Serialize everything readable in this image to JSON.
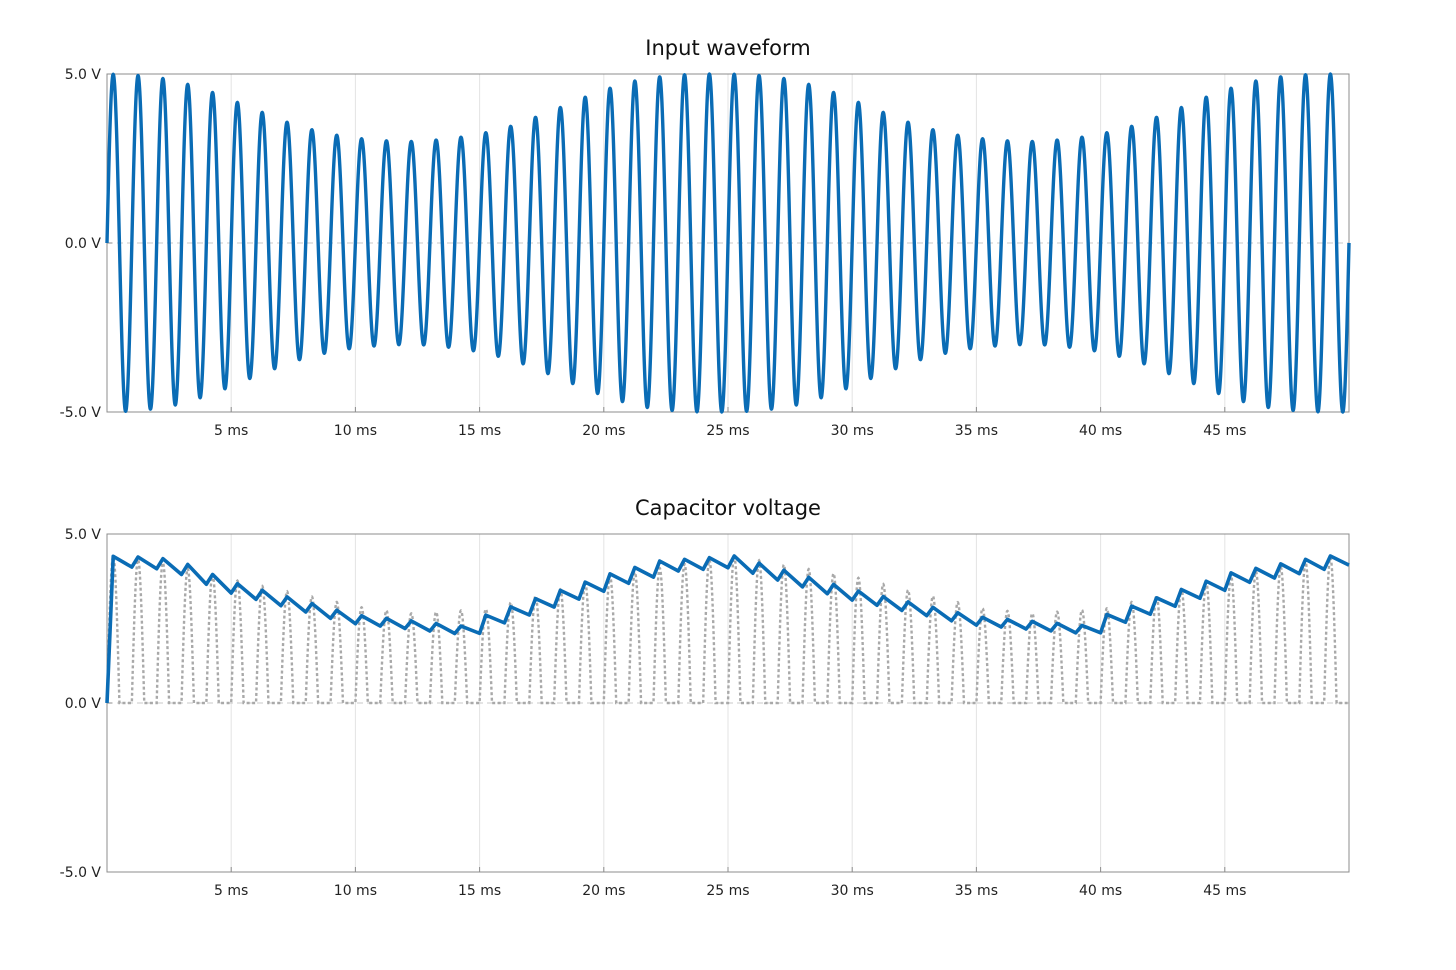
{
  "chart_data": [
    {
      "type": "line",
      "title": "Input waveform",
      "xlabel": "",
      "ylabel": "",
      "x_unit": "ms",
      "xlim": [
        0,
        50
      ],
      "ylim": [
        -5.0,
        5.0
      ],
      "x_ticks": [
        5,
        10,
        15,
        20,
        25,
        30,
        35,
        40,
        45
      ],
      "x_tick_labels": [
        "5 ms",
        "10 ms",
        "15 ms",
        "20 ms",
        "25 ms",
        "30 ms",
        "35 ms",
        "40 ms",
        "45 ms"
      ],
      "y_ticks": [
        5.0,
        0.0,
        -5.0
      ],
      "y_tick_labels": [
        "5.0 V",
        "0.0 V",
        "-5.0 V"
      ],
      "grid": true,
      "series": [
        {
          "color": "#0a6cb5",
          "signal": "amplitude-modulated sine",
          "carrier_frequency_hz": 1000,
          "envelope_min_v": 3.0,
          "envelope_max_v": 5.0,
          "envelope_period_ms": 25,
          "envelope_peaks_ms": [
            0,
            25,
            50
          ],
          "envelope_troughs_ms": [
            12.5,
            37.5
          ],
          "envelope_points": [
            {
              "x": 0.5,
              "y": 4.99
            },
            {
              "x": 1.5,
              "y": 4.94
            },
            {
              "x": 2.5,
              "y": 4.84
            },
            {
              "x": 3.5,
              "y": 4.64
            },
            {
              "x": 4.5,
              "y": 4.39
            },
            {
              "x": 5.5,
              "y": 4.08
            },
            {
              "x": 6.5,
              "y": 3.79
            },
            {
              "x": 7.5,
              "y": 3.5
            },
            {
              "x": 8.5,
              "y": 3.3
            },
            {
              "x": 9.5,
              "y": 3.15
            },
            {
              "x": 10.5,
              "y": 3.06
            },
            {
              "x": 11.5,
              "y": 3.01
            },
            {
              "x": 12.5,
              "y": 3.0
            },
            {
              "x": 13.5,
              "y": 3.06
            },
            {
              "x": 14.5,
              "y": 3.15
            },
            {
              "x": 15.5,
              "y": 3.3
            },
            {
              "x": 16.5,
              "y": 3.5
            },
            {
              "x": 17.5,
              "y": 3.79
            },
            {
              "x": 18.5,
              "y": 4.08
            },
            {
              "x": 19.5,
              "y": 4.39
            },
            {
              "x": 20.5,
              "y": 4.64
            },
            {
              "x": 21.5,
              "y": 4.84
            },
            {
              "x": 22.5,
              "y": 4.94
            },
            {
              "x": 23.5,
              "y": 4.99
            },
            {
              "x": 24.5,
              "y": 5.0
            },
            {
              "x": 25.5,
              "y": 4.99
            },
            {
              "x": 26.5,
              "y": 4.94
            },
            {
              "x": 27.5,
              "y": 4.84
            },
            {
              "x": 28.5,
              "y": 4.64
            },
            {
              "x": 29.5,
              "y": 4.39
            },
            {
              "x": 30.5,
              "y": 4.08
            },
            {
              "x": 31.5,
              "y": 3.79
            },
            {
              "x": 32.5,
              "y": 3.5
            },
            {
              "x": 33.5,
              "y": 3.3
            },
            {
              "x": 34.5,
              "y": 3.15
            },
            {
              "x": 35.5,
              "y": 3.06
            },
            {
              "x": 36.5,
              "y": 3.01
            },
            {
              "x": 37.5,
              "y": 3.0
            },
            {
              "x": 38.5,
              "y": 3.06
            },
            {
              "x": 39.5,
              "y": 3.15
            },
            {
              "x": 40.5,
              "y": 3.3
            },
            {
              "x": 41.5,
              "y": 3.5
            },
            {
              "x": 42.5,
              "y": 3.79
            },
            {
              "x": 43.5,
              "y": 4.08
            },
            {
              "x": 44.5,
              "y": 4.39
            },
            {
              "x": 45.5,
              "y": 4.64
            },
            {
              "x": 46.5,
              "y": 4.84
            },
            {
              "x": 47.5,
              "y": 4.94
            },
            {
              "x": 48.5,
              "y": 4.99
            },
            {
              "x": 49.5,
              "y": 5.0
            }
          ]
        }
      ]
    },
    {
      "type": "line",
      "title": "Capacitor voltage",
      "xlabel": "",
      "ylabel": "",
      "x_unit": "ms",
      "xlim": [
        0,
        50
      ],
      "ylim": [
        -5.0,
        5.0
      ],
      "x_ticks": [
        5,
        10,
        15,
        20,
        25,
        30,
        35,
        40,
        45
      ],
      "x_tick_labels": [
        "5 ms",
        "10 ms",
        "15 ms",
        "20 ms",
        "25 ms",
        "30 ms",
        "35 ms",
        "40 ms",
        "45 ms"
      ],
      "y_ticks": [
        5.0,
        0.0,
        -5.0
      ],
      "y_tick_labels": [
        "5.0 V",
        "0.0 V",
        "-5.0 V"
      ],
      "grid": true,
      "series": [
        {
          "color": "#0a6cb5",
          "style": "solid",
          "signal": "capacitor voltage (half-wave rectifier with RC decay)",
          "points": [
            {
              "x": 0.0,
              "y": 0.0
            },
            {
              "x": 0.25,
              "y": 4.34
            },
            {
              "x": 1.0,
              "y": 4.05
            },
            {
              "x": 1.25,
              "y": 4.32
            },
            {
              "x": 2.0,
              "y": 4.0
            },
            {
              "x": 2.25,
              "y": 4.27
            },
            {
              "x": 3.0,
              "y": 3.94
            },
            {
              "x": 3.25,
              "y": 4.1
            },
            {
              "x": 5.0,
              "y": 3.58
            },
            {
              "x": 10.0,
              "y": 2.6
            },
            {
              "x": 15.0,
              "y": 2.22
            },
            {
              "x": 15.25,
              "y": 2.6
            },
            {
              "x": 20.25,
              "y": 3.82
            },
            {
              "x": 22.25,
              "y": 4.2
            },
            {
              "x": 25.25,
              "y": 4.35
            },
            {
              "x": 30.0,
              "y": 3.35
            },
            {
              "x": 35.0,
              "y": 2.55
            },
            {
              "x": 40.0,
              "y": 2.25
            },
            {
              "x": 40.25,
              "y": 2.62
            },
            {
              "x": 45.25,
              "y": 3.85
            },
            {
              "x": 48.25,
              "y": 4.25
            },
            {
              "x": 49.25,
              "y": 4.35
            },
            {
              "x": 50.0,
              "y": 4.08
            }
          ]
        },
        {
          "color": "#a9a9a9",
          "style": "dotted",
          "signal": "half-wave rectified input",
          "envelope_points": [
            {
              "x": 0.25,
              "y": 4.34
            },
            {
              "x": 2.25,
              "y": 4.15
            },
            {
              "x": 5.25,
              "y": 3.62
            },
            {
              "x": 10.25,
              "y": 2.83
            },
            {
              "x": 12.25,
              "y": 2.65
            },
            {
              "x": 15.25,
              "y": 2.78
            },
            {
              "x": 20.25,
              "y": 3.75
            },
            {
              "x": 25.25,
              "y": 4.35
            },
            {
              "x": 30.25,
              "y": 3.7
            },
            {
              "x": 35.25,
              "y": 2.8
            },
            {
              "x": 37.25,
              "y": 2.65
            },
            {
              "x": 40.25,
              "y": 2.8
            },
            {
              "x": 45.25,
              "y": 3.75
            },
            {
              "x": 49.25,
              "y": 4.3
            }
          ]
        }
      ]
    }
  ]
}
